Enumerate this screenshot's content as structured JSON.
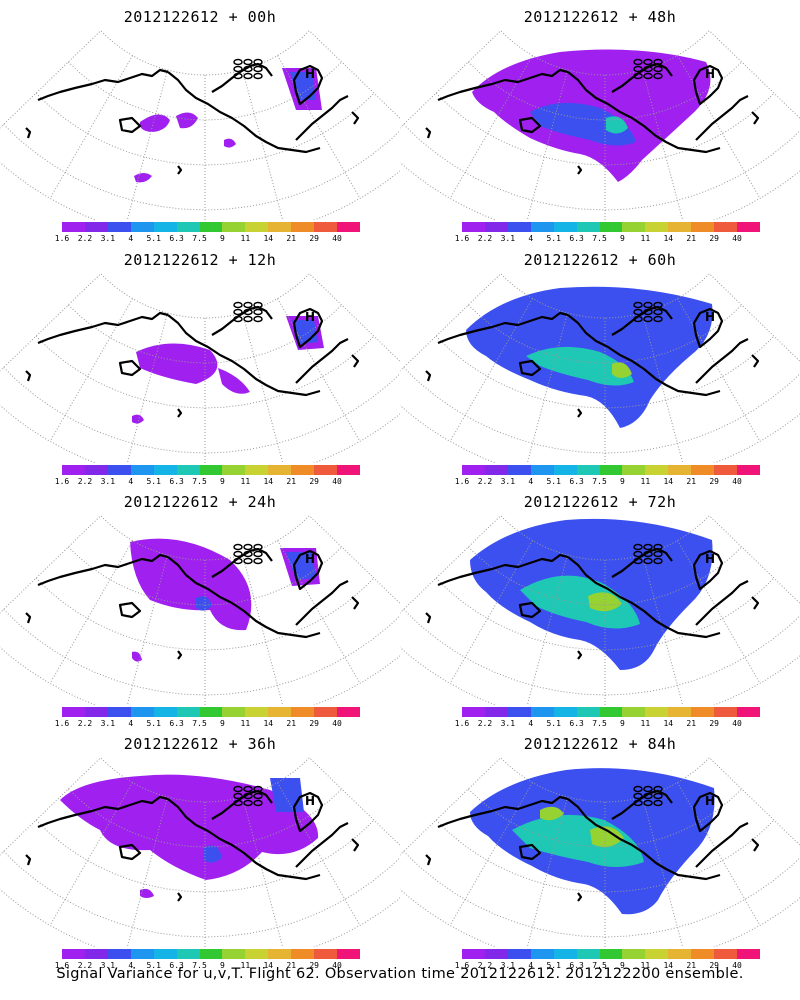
{
  "panels": [
    {
      "title": "2012122612 + 00h",
      "lead_hours": 0
    },
    {
      "title": "2012122612 + 48h",
      "lead_hours": 48
    },
    {
      "title": "2012122612 + 12h",
      "lead_hours": 12
    },
    {
      "title": "2012122612 + 60h",
      "lead_hours": 60
    },
    {
      "title": "2012122612 + 24h",
      "lead_hours": 24
    },
    {
      "title": "2012122612 + 72h",
      "lead_hours": 72
    },
    {
      "title": "2012122612 + 36h",
      "lead_hours": 36
    },
    {
      "title": "2012122612 + 84h",
      "lead_hours": 84
    }
  ],
  "colorbar": {
    "labels": [
      "1.6",
      "2.2",
      "3.1",
      "4",
      "5.1",
      "6.3",
      "7.5",
      "9",
      "11",
      "14",
      "21",
      "29",
      "40"
    ],
    "colors": [
      "#a020f0",
      "#8228e8",
      "#3c50f0",
      "#1e96f0",
      "#14b4e6",
      "#1ec8b4",
      "#32c832",
      "#96d232",
      "#c8d232",
      "#e6b432",
      "#f08c28",
      "#f05a3c",
      "#f01478"
    ]
  },
  "map": {
    "coastline_color": "#000000",
    "graticule_color": "#999999",
    "field_colors": {
      "low": "#a020f0",
      "mid": "#3c50f0",
      "high": "#1ec8b4",
      "peak": "#96d232"
    },
    "markers": [
      {
        "label": "H"
      }
    ]
  },
  "footer": "Signal Variance for u,v,T. Flight 62. Observation time 2012122612. 2012122200 ensemble."
}
